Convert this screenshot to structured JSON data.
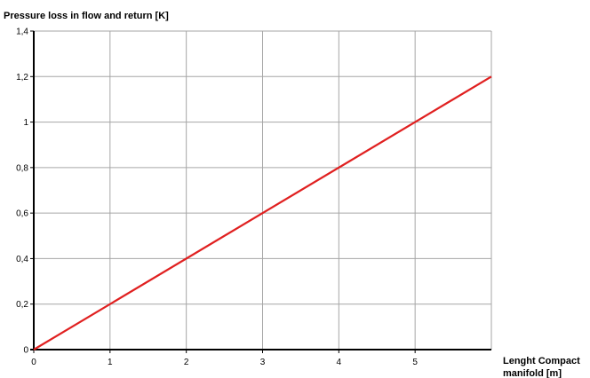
{
  "chart_data": {
    "type": "line",
    "ylabel": "Pressure loss in flow and return [K]",
    "xlabel_lines": [
      "Lenght Compact",
      "manifold [m]"
    ],
    "xlim": [
      0,
      6
    ],
    "ylim": [
      0,
      1.4
    ],
    "x_ticks": [
      0,
      1,
      2,
      3,
      4,
      5
    ],
    "x_tick_labels": [
      "0",
      "1",
      "2",
      "3",
      "4",
      "5"
    ],
    "y_ticks": [
      0,
      0.2,
      0.4,
      0.6,
      0.8,
      1,
      1.2,
      1.4
    ],
    "y_tick_labels": [
      "0",
      "0,2",
      "0,4",
      "0,6",
      "0,8",
      "1",
      "1,2",
      "1,4"
    ],
    "grid": true,
    "series": [
      {
        "color": "#e02020",
        "x": [
          0,
          6
        ],
        "y": [
          0,
          1.2
        ]
      }
    ]
  }
}
